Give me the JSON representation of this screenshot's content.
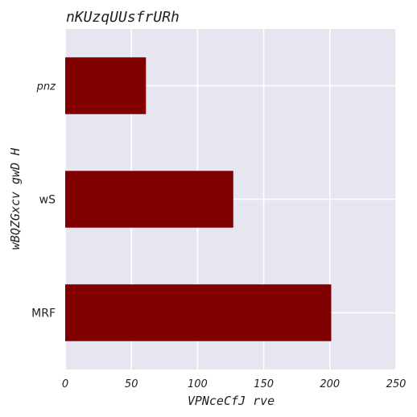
{
  "chart_data": {
    "type": "bar",
    "orientation": "horizontal",
    "title": "nKUzqUUsfrURh",
    "xlabel": "VPNceCfJ rve",
    "ylabel": "wBQZGxcv gwD H",
    "categories": [
      "pnz",
      "wS",
      "MRF"
    ],
    "values": [
      61,
      127,
      201
    ],
    "xlim": [
      0,
      250
    ],
    "xticks": [
      "0",
      "50",
      "100",
      "150",
      "200",
      "250"
    ],
    "grid": true,
    "legend": "none",
    "colors": {
      "bar": "#800000",
      "plot_background": "#e5e6f0",
      "grid": "#ffffff"
    }
  }
}
